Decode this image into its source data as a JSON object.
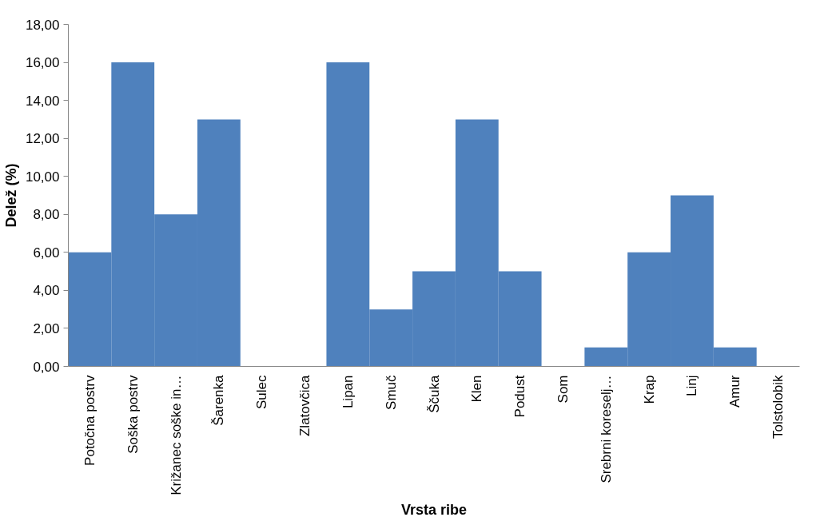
{
  "chart_data": {
    "type": "bar",
    "xlabel": "Vrsta ribe",
    "ylabel": "Delež (%)",
    "color": "#4f81bd",
    "categories": [
      "Potočna postrv",
      "Soška postrv",
      "Križanec soške in…",
      "Šarenka",
      "Sulec",
      "Zlatovčica",
      "Lipan",
      "Smuč",
      "Ščuka",
      "Klen",
      "Podust",
      "Som",
      "Srebrni koreselj…",
      "Krap",
      "Linj",
      "Amur",
      "Tolstolobik"
    ],
    "values": [
      6,
      16,
      8,
      13,
      0,
      0,
      16,
      3,
      5,
      13,
      5,
      0,
      1,
      6,
      9,
      1,
      0
    ],
    "ylim": [
      0,
      18
    ],
    "yticks": [
      {
        "value": 0,
        "label": "0,00"
      },
      {
        "value": 2,
        "label": "2,00"
      },
      {
        "value": 4,
        "label": "4,00"
      },
      {
        "value": 6,
        "label": "6,00"
      },
      {
        "value": 8,
        "label": "8,00"
      },
      {
        "value": 10,
        "label": "10,00"
      },
      {
        "value": 12,
        "label": "12,00"
      },
      {
        "value": 14,
        "label": "14,00"
      },
      {
        "value": 16,
        "label": "16,00"
      },
      {
        "value": 18,
        "label": "18,00"
      }
    ]
  }
}
